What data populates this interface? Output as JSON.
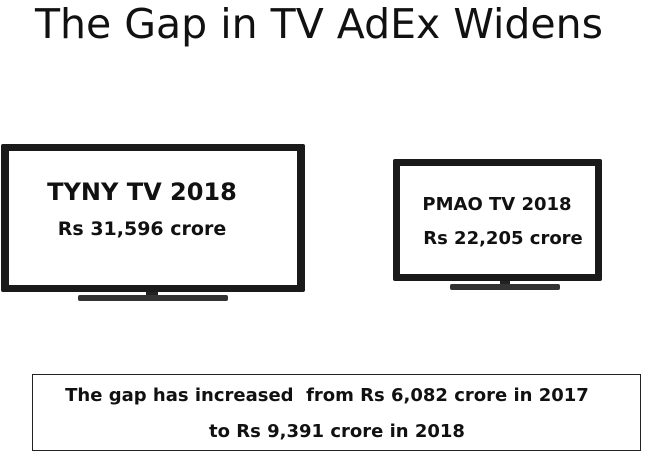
{
  "title": "The Gap in TV AdEx Widens",
  "tvs": [
    {
      "label": "TYNY TV 2018",
      "value": "Rs 31,596 crore"
    },
    {
      "label": "PMAO TV 2018",
      "value": "Rs 22,205 crore"
    }
  ],
  "note": {
    "lines": [
      "The gap has increased  from Rs 6,082 crore in 2017",
      "to Rs 9,391 crore in 2018"
    ]
  }
}
